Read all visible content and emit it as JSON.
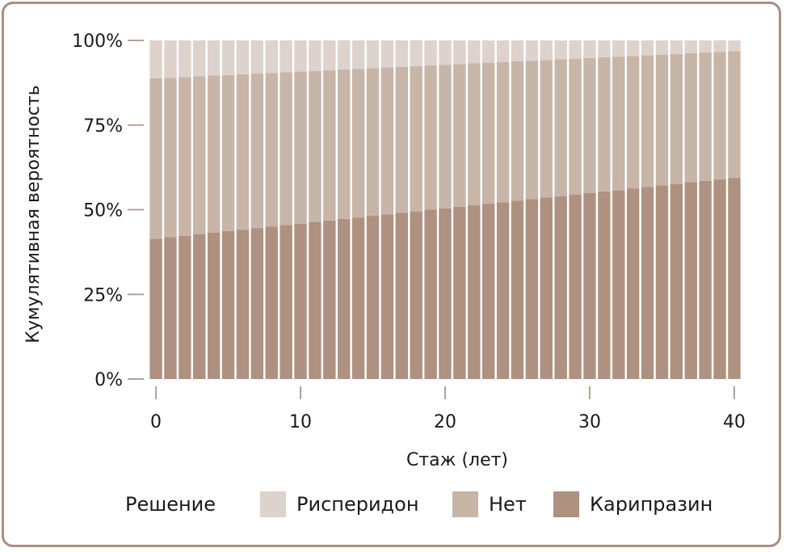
{
  "colors": {
    "risperidone": "#ddd3cc",
    "none": "#c7b5a8",
    "cariprazine": "#ae9180",
    "tick": "#b0a298",
    "frame": "#a89080"
  },
  "chart_data": {
    "type": "bar",
    "stacked": "percent",
    "x": [
      0,
      1,
      2,
      3,
      4,
      5,
      6,
      7,
      8,
      9,
      10,
      11,
      12,
      13,
      14,
      15,
      16,
      17,
      18,
      19,
      20,
      21,
      22,
      23,
      24,
      25,
      26,
      27,
      28,
      29,
      30,
      31,
      32,
      33,
      34,
      35,
      36,
      37,
      38,
      39,
      40
    ],
    "series": [
      {
        "name": "Карипразин",
        "color_key": "cariprazine",
        "values": [
          0.414,
          0.419,
          0.423,
          0.428,
          0.432,
          0.437,
          0.441,
          0.446,
          0.45,
          0.455,
          0.459,
          0.464,
          0.468,
          0.473,
          0.477,
          0.482,
          0.486,
          0.491,
          0.495,
          0.5,
          0.504,
          0.509,
          0.513,
          0.518,
          0.522,
          0.527,
          0.531,
          0.536,
          0.54,
          0.545,
          0.549,
          0.554,
          0.558,
          0.563,
          0.567,
          0.572,
          0.576,
          0.581,
          0.585,
          0.59,
          0.594
        ]
      },
      {
        "name": "Нет",
        "color_key": "none",
        "values": [
          0.474,
          0.471,
          0.469,
          0.466,
          0.464,
          0.461,
          0.459,
          0.456,
          0.454,
          0.451,
          0.449,
          0.446,
          0.444,
          0.441,
          0.439,
          0.436,
          0.434,
          0.431,
          0.429,
          0.426,
          0.424,
          0.421,
          0.419,
          0.416,
          0.414,
          0.411,
          0.409,
          0.406,
          0.404,
          0.401,
          0.399,
          0.396,
          0.394,
          0.391,
          0.389,
          0.386,
          0.384,
          0.381,
          0.379,
          0.376,
          0.374
        ]
      },
      {
        "name": "Рисперидон",
        "color_key": "risperidone",
        "values": [
          0.112,
          0.11,
          0.108,
          0.106,
          0.104,
          0.102,
          0.1,
          0.098,
          0.096,
          0.094,
          0.092,
          0.09,
          0.088,
          0.086,
          0.084,
          0.082,
          0.08,
          0.078,
          0.076,
          0.074,
          0.072,
          0.07,
          0.068,
          0.066,
          0.064,
          0.062,
          0.06,
          0.058,
          0.056,
          0.054,
          0.052,
          0.05,
          0.048,
          0.046,
          0.044,
          0.042,
          0.04,
          0.038,
          0.036,
          0.034,
          0.032
        ]
      }
    ],
    "y_ticks": [
      "0%",
      "25%",
      "50%",
      "75%",
      "100%"
    ],
    "y_tick_values": [
      0,
      0.25,
      0.5,
      0.75,
      1.0
    ],
    "x_ticks": [
      "0",
      "10",
      "20",
      "30",
      "40"
    ],
    "x_tick_values": [
      0,
      10,
      20,
      30,
      40
    ],
    "xlabel": "Стаж (лет)",
    "ylabel": "Кумулятивная вероятность",
    "ylim": [
      0,
      1
    ],
    "xlim": [
      0,
      40
    ],
    "legend_position": "bottom",
    "legend_title": "Решение",
    "legend_order": [
      "Рисперидон",
      "Нет",
      "Карипразин"
    ]
  }
}
